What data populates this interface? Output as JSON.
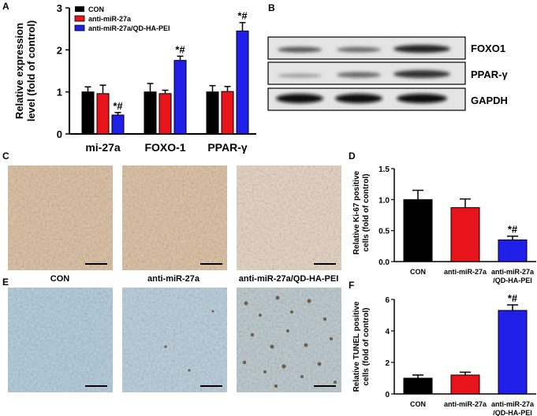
{
  "panel_letters": {
    "a": "A",
    "b": "B",
    "c": "C",
    "d": "D",
    "e": "E",
    "f": "F"
  },
  "colors": {
    "con": "#000000",
    "anti": "#e8141c",
    "qd": "#1f1fe8"
  },
  "panel_a": {
    "ylabel_line1": "Relative expression",
    "ylabel_line2": "level (fold of control)",
    "legend": [
      "CON",
      "anti-miR-27a",
      "anti-miR-27a/QD-HA-PEI"
    ],
    "chart_data": {
      "type": "bar",
      "categories": [
        "mi-27a",
        "FOXO-1",
        "PPAR-γ"
      ],
      "series": [
        {
          "name": "CON",
          "values": [
            1.0,
            1.0,
            1.0
          ],
          "errors": [
            0.12,
            0.2,
            0.15
          ]
        },
        {
          "name": "anti-miR-27a",
          "values": [
            0.96,
            0.96,
            1.01
          ],
          "errors": [
            0.2,
            0.08,
            0.12
          ]
        },
        {
          "name": "anti-miR-27a/QD-HA-PEI",
          "values": [
            0.45,
            1.75,
            2.45
          ],
          "errors": [
            0.06,
            0.1,
            0.2
          ]
        }
      ],
      "ylim": [
        0,
        3
      ],
      "yticks": [
        "0",
        "1",
        "2",
        "3"
      ],
      "annotations": [
        "*#",
        "*#",
        "*#"
      ]
    }
  },
  "panel_b": {
    "labels": [
      "FOXO1",
      "PPAR-γ",
      "GAPDH"
    ]
  },
  "panel_c_e": {
    "column_labels": [
      "CON",
      "anti-miR-27a",
      "anti-miR-27a/QD-HA-PEI"
    ]
  },
  "panel_d": {
    "ylabel_line1": "Relative Ki-67 positive",
    "ylabel_line2": "cells (fold of control)",
    "chart_data": {
      "type": "bar",
      "categories": [
        "CON",
        "anti-miR-27a",
        "anti-miR-27a|/QD-HA-PEI"
      ],
      "values": [
        1.0,
        0.87,
        0.35
      ],
      "errors": [
        0.15,
        0.14,
        0.06
      ],
      "ylim": [
        0,
        1.5
      ],
      "yticks": [
        "0.0",
        "0.5",
        "1.0",
        "1.5"
      ],
      "annotation": "*#"
    }
  },
  "panel_f": {
    "ylabel_line1": "Relative TUNEL positive",
    "ylabel_line2": "cells (fold of control)",
    "chart_data": {
      "type": "bar",
      "categories": [
        "CON",
        "anti-miR-27a",
        "anti-miR-27a|/QD-HA-PEI"
      ],
      "values": [
        1.0,
        1.2,
        5.3
      ],
      "errors": [
        0.2,
        0.18,
        0.35
      ],
      "ylim": [
        0,
        6
      ],
      "yticks": [
        "0",
        "2",
        "4",
        "6"
      ],
      "annotation": "*#"
    }
  }
}
